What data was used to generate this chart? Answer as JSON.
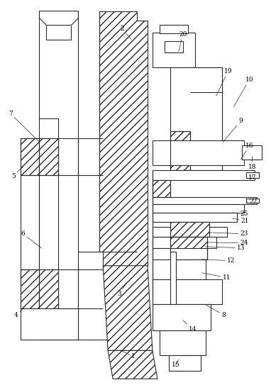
{
  "figsize": [
    3.82,
    5.43
  ],
  "dpi": 100,
  "lc": "#2a2a2a",
  "lw": 0.8,
  "bg": "white"
}
